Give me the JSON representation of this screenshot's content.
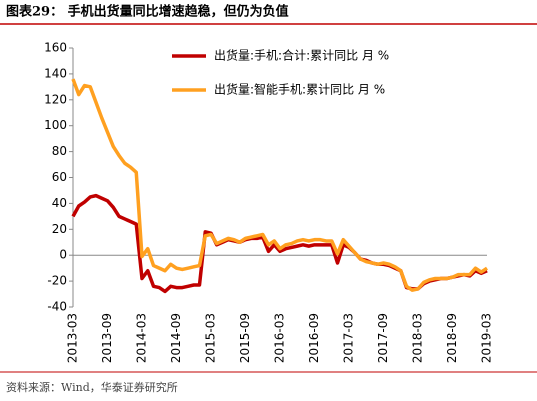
{
  "chart_data": {
    "type": "line",
    "title": "图表29：  手机出货量同比增速趋稳，但仍为负值",
    "source": "资料来源：Wind，华泰证券研究所",
    "categories": [
      "2013-03",
      null,
      null,
      null,
      null,
      null,
      "2013-09",
      null,
      null,
      null,
      null,
      null,
      "2014-03",
      null,
      null,
      null,
      null,
      null,
      "2014-09",
      null,
      null,
      null,
      null,
      null,
      "2015-03",
      null,
      null,
      null,
      null,
      null,
      "2015-09",
      null,
      null,
      null,
      null,
      null,
      "2016-03",
      null,
      null,
      null,
      null,
      null,
      "2016-09",
      null,
      null,
      null,
      null,
      null,
      "2017-03",
      null,
      null,
      null,
      null,
      null,
      "2017-09",
      null,
      null,
      null,
      null,
      null,
      "2018-03",
      null,
      null,
      null,
      null,
      null,
      "2018-09",
      null,
      null,
      null,
      null,
      null,
      "2019-03"
    ],
    "series": [
      {
        "name": "出货量:手机:合计:累计同比 月 %",
        "color": "#c00000",
        "values": [
          30,
          38,
          41,
          45,
          46,
          44,
          42,
          37,
          30,
          28,
          26,
          24,
          -18,
          -12,
          -24,
          -25,
          -28,
          -24,
          -25,
          -25,
          -24,
          -23,
          -23,
          18,
          17,
          8,
          10,
          12,
          11,
          10,
          12,
          13,
          13,
          14,
          3,
          8,
          3,
          5,
          6,
          7,
          8,
          7,
          8,
          8,
          8,
          8,
          -6,
          8,
          6,
          2,
          -3,
          -4,
          -6,
          -7,
          -7,
          -8,
          -10,
          -12,
          -25,
          -26,
          -26,
          -22,
          -20,
          -19,
          -18,
          -18,
          -17,
          -16,
          -15,
          -16,
          -12,
          -14,
          -12
        ]
      },
      {
        "name": "出货量:智能手机:累计同比 月 %",
        "color": "#ffa020",
        "values": [
          136,
          124,
          131,
          130,
          118,
          106,
          95,
          84,
          77,
          71,
          68,
          64,
          -1,
          5,
          -8,
          -10,
          -12,
          -7,
          -10,
          -11,
          -10,
          -9,
          -8,
          15,
          16,
          9,
          11,
          13,
          12,
          10,
          13,
          14,
          15,
          16,
          8,
          11,
          5,
          8,
          9,
          11,
          12,
          11,
          12,
          12,
          11,
          11,
          1,
          12,
          7,
          2,
          -3,
          -5,
          -6,
          -7,
          -6,
          -7,
          -9,
          -12,
          -24,
          -27,
          -26,
          -21,
          -19,
          -18,
          -18,
          -18,
          -17,
          -15,
          -15,
          -15,
          -10,
          -13,
          -10
        ]
      }
    ],
    "ylim": [
      -40,
      160
    ],
    "yticks": [
      -40,
      -20,
      0,
      20,
      40,
      60,
      80,
      100,
      120,
      140,
      160
    ],
    "legend": "top-center"
  }
}
